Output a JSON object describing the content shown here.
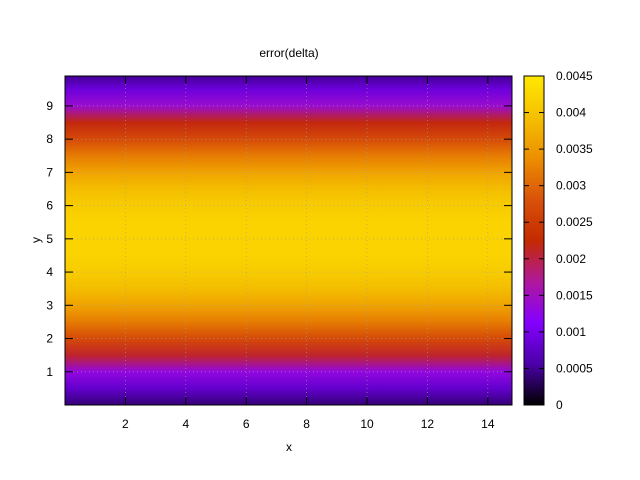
{
  "chart_data": {
    "type": "heatmap",
    "title": "error(delta)",
    "xlabel": "x",
    "ylabel": "y",
    "xlim": [
      0,
      14.8
    ],
    "ylim": [
      0,
      9.9
    ],
    "x_ticks": [
      "2",
      "4",
      "6",
      "8",
      "10",
      "12",
      "14"
    ],
    "x_tick_values": [
      2,
      4,
      6,
      8,
      10,
      12,
      14
    ],
    "y_ticks": [
      "1",
      "2",
      "3",
      "4",
      "5",
      "6",
      "7",
      "8",
      "9"
    ],
    "y_tick_values": [
      1,
      2,
      3,
      4,
      5,
      6,
      7,
      8,
      9
    ],
    "grid": true,
    "colorbar": {
      "range": [
        0,
        0.0045
      ],
      "ticks": [
        "0",
        "0.0005",
        "0.001",
        "0.0015",
        "0.002",
        "0.0025",
        "0.003",
        "0.0035",
        "0.004",
        "0.0045"
      ],
      "tick_values": [
        0,
        0.0005,
        0.001,
        0.0015,
        0.002,
        0.0025,
        0.003,
        0.0035,
        0.004,
        0.0045
      ],
      "palette": [
        "#000000",
        "#4b00a8",
        "#8400ff",
        "#b0189c",
        "#c42a00",
        "#d9520a",
        "#ec8f00",
        "#f5c000",
        "#ffe800"
      ]
    },
    "profile_y": [
      0,
      0.5,
      1,
      1.5,
      2,
      2.5,
      3,
      3.5,
      4,
      4.5,
      5,
      5.5,
      6,
      6.5,
      7,
      7.5,
      8,
      8.5,
      9,
      9.5,
      9.9
    ],
    "profile_values": [
      0.0004,
      0.0008,
      0.0013,
      0.0021,
      0.0027,
      0.0032,
      0.0036,
      0.0039,
      0.0041,
      0.0042,
      0.0042,
      0.0042,
      0.0041,
      0.0039,
      0.0036,
      0.0032,
      0.0027,
      0.0022,
      0.0014,
      0.0009,
      0.0005
    ]
  }
}
